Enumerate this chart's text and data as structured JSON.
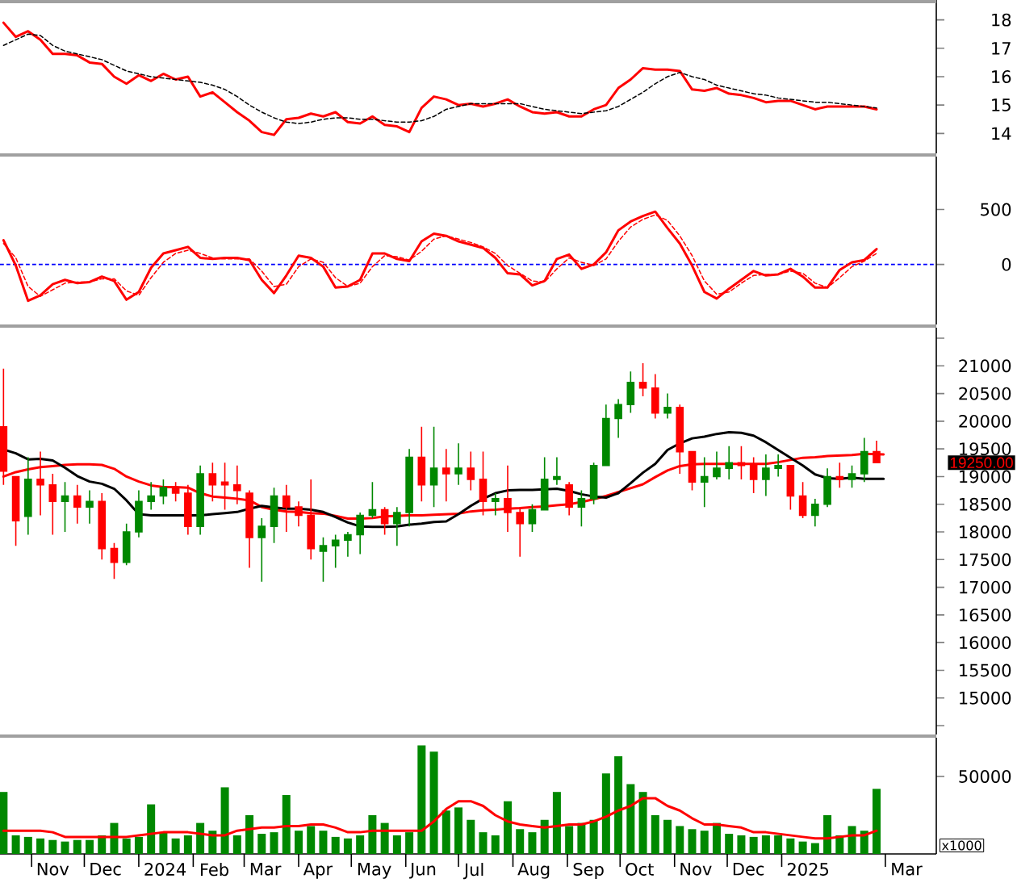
{
  "chart_data": [
    {
      "type": "line",
      "tick_labels": "y",
      "xlim": [
        "2023-10-14",
        "2025-03-30"
      ],
      "ylim": [
        13.3,
        18.7
      ],
      "yticks": [
        14,
        15,
        16,
        17,
        18
      ],
      "x": [
        "2023-10-16",
        "2023-10-23",
        "2023-10-30",
        "2023-11-06",
        "2023-11-13",
        "2023-11-20",
        "2023-11-27",
        "2023-12-04",
        "2023-12-11",
        "2023-12-18",
        "2023-12-25",
        "2024-01-01",
        "2024-01-08",
        "2024-01-15",
        "2024-01-22",
        "2024-01-29",
        "2024-02-05",
        "2024-02-12",
        "2024-02-19",
        "2024-02-26",
        "2024-03-04",
        "2024-03-11",
        "2024-03-18",
        "2024-03-25",
        "2024-04-01",
        "2024-04-08",
        "2024-04-15",
        "2024-04-22",
        "2024-04-29",
        "2024-05-06",
        "2024-05-13",
        "2024-05-20",
        "2024-05-27",
        "2024-06-03",
        "2024-06-10",
        "2024-06-17",
        "2024-06-24",
        "2024-07-01",
        "2024-07-08",
        "2024-07-15",
        "2024-07-22",
        "2024-07-29",
        "2024-08-05",
        "2024-08-12",
        "2024-08-19",
        "2024-08-26",
        "2024-09-02",
        "2024-09-09",
        "2024-09-16",
        "2024-09-23",
        "2024-09-30",
        "2024-10-07",
        "2024-10-14",
        "2024-10-21",
        "2024-10-28",
        "2024-11-04",
        "2024-11-11",
        "2024-11-18",
        "2024-11-25",
        "2024-12-02",
        "2024-12-09",
        "2024-12-16",
        "2024-12-23",
        "2024-12-30",
        "2025-01-06",
        "2025-01-13",
        "2025-01-20",
        "2025-01-27",
        "2025-02-03",
        "2025-02-10",
        "2025-02-17",
        "2025-02-24"
      ],
      "series": [
        {
          "color": "#ff0000",
          "line_style": "solid",
          "values": [
            17.9,
            17.4,
            17.6,
            17.3,
            16.8,
            16.8,
            16.75,
            16.5,
            16.45,
            16.0,
            15.75,
            16.05,
            15.85,
            16.1,
            15.9,
            16.0,
            15.3,
            15.45,
            15.1,
            14.75,
            14.45,
            14.05,
            13.95,
            14.5,
            14.55,
            14.7,
            14.6,
            14.75,
            14.4,
            14.35,
            14.6,
            14.3,
            14.25,
            14.05,
            14.9,
            15.3,
            15.2,
            15.0,
            15.05,
            14.95,
            15.05,
            15.2,
            14.95,
            14.75,
            14.7,
            14.75,
            14.6,
            14.6,
            14.85,
            15.0,
            15.6,
            15.9,
            16.3,
            16.25,
            16.25,
            16.2,
            15.55,
            15.5,
            15.6,
            15.4,
            15.35,
            15.25,
            15.1,
            15.15,
            15.15,
            15.0,
            14.85,
            14.95,
            14.95,
            14.95,
            14.95,
            14.85
          ]
        },
        {
          "color": "#000000",
          "line_style": "dashed",
          "values": [
            17.1,
            17.3,
            17.5,
            17.45,
            17.1,
            16.9,
            16.8,
            16.7,
            16.6,
            16.4,
            16.2,
            16.1,
            16.0,
            15.95,
            15.9,
            15.85,
            15.8,
            15.7,
            15.55,
            15.3,
            15.0,
            14.75,
            14.55,
            14.4,
            14.35,
            14.4,
            14.5,
            14.55,
            14.55,
            14.5,
            14.5,
            14.45,
            14.4,
            14.4,
            14.45,
            14.6,
            14.85,
            14.95,
            15.05,
            15.05,
            15.05,
            15.05,
            15.05,
            14.95,
            14.85,
            14.8,
            14.75,
            14.7,
            14.75,
            14.8,
            14.95,
            15.2,
            15.45,
            15.75,
            16.0,
            16.15,
            16.0,
            15.9,
            15.7,
            15.6,
            15.5,
            15.4,
            15.35,
            15.25,
            15.2,
            15.15,
            15.1,
            15.1,
            15.05,
            15.0,
            14.95,
            14.9
          ]
        }
      ]
    },
    {
      "type": "line",
      "tick_labels": "y",
      "xlim": [
        "2023-10-14",
        "2025-03-30"
      ],
      "ylim": [
        -545,
        980
      ],
      "yticks": [
        0,
        500
      ],
      "ref_lines": [
        {
          "axis": "y",
          "value": 0,
          "color": "#0000ff",
          "line_style": "dashed"
        }
      ],
      "x": [
        "2023-10-16",
        "2023-10-23",
        "2023-10-30",
        "2023-11-06",
        "2023-11-13",
        "2023-11-20",
        "2023-11-27",
        "2023-12-04",
        "2023-12-11",
        "2023-12-18",
        "2023-12-25",
        "2024-01-01",
        "2024-01-08",
        "2024-01-15",
        "2024-01-22",
        "2024-01-29",
        "2024-02-05",
        "2024-02-12",
        "2024-02-19",
        "2024-02-26",
        "2024-03-04",
        "2024-03-11",
        "2024-03-18",
        "2024-03-25",
        "2024-04-01",
        "2024-04-08",
        "2024-04-15",
        "2024-04-22",
        "2024-04-29",
        "2024-05-06",
        "2024-05-13",
        "2024-05-20",
        "2024-05-27",
        "2024-06-03",
        "2024-06-10",
        "2024-06-17",
        "2024-06-24",
        "2024-07-01",
        "2024-07-08",
        "2024-07-15",
        "2024-07-22",
        "2024-07-29",
        "2024-08-05",
        "2024-08-12",
        "2024-08-19",
        "2024-08-26",
        "2024-09-02",
        "2024-09-09",
        "2024-09-16",
        "2024-09-23",
        "2024-09-30",
        "2024-10-07",
        "2024-10-14",
        "2024-10-21",
        "2024-10-28",
        "2024-11-04",
        "2024-11-11",
        "2024-11-18",
        "2024-11-25",
        "2024-12-02",
        "2024-12-09",
        "2024-12-16",
        "2024-12-23",
        "2024-12-30",
        "2025-01-06",
        "2025-01-13",
        "2025-01-20",
        "2025-01-27",
        "2025-02-03",
        "2025-02-10",
        "2025-02-17",
        "2025-02-24"
      ],
      "series": [
        {
          "color": "#ff0000",
          "line_style": "solid",
          "values": [
            220,
            -10,
            -330,
            -280,
            -180,
            -140,
            -170,
            -160,
            -110,
            -150,
            -320,
            -250,
            -30,
            100,
            130,
            160,
            60,
            50,
            60,
            60,
            40,
            -140,
            -260,
            -100,
            80,
            60,
            -20,
            -210,
            -200,
            -140,
            100,
            100,
            50,
            30,
            210,
            280,
            260,
            210,
            180,
            150,
            60,
            -80,
            -90,
            -190,
            -150,
            50,
            90,
            -40,
            0,
            110,
            310,
            390,
            440,
            480,
            330,
            190,
            -10,
            -250,
            -310,
            -220,
            -140,
            -60,
            -100,
            -90,
            -40,
            -110,
            -210,
            -210,
            -50,
            20,
            40,
            140
          ]
        },
        {
          "color": "#ff0000",
          "line_style": "dashed",
          "values": [
            190,
            60,
            -200,
            -290,
            -230,
            -170,
            -160,
            -160,
            -130,
            -130,
            -240,
            -280,
            -120,
            20,
            100,
            130,
            100,
            60,
            50,
            50,
            50,
            -60,
            -200,
            -180,
            -20,
            50,
            20,
            -120,
            -200,
            -170,
            -20,
            80,
            70,
            40,
            120,
            230,
            260,
            230,
            200,
            160,
            100,
            -10,
            -80,
            -150,
            -160,
            -40,
            60,
            20,
            -10,
            50,
            210,
            340,
            410,
            450,
            400,
            260,
            80,
            -150,
            -270,
            -250,
            -170,
            -100,
            -90,
            -90,
            -60,
            -80,
            -170,
            -210,
            -120,
            -20,
            30,
            100
          ]
        }
      ]
    },
    {
      "type": "candlestick",
      "tick_labels": "y",
      "xlim": [
        "2023-10-14",
        "2025-03-30"
      ],
      "ylim": [
        14340,
        21690
      ],
      "yticks": [
        {
          "value": 14500,
          "label": null
        },
        15000,
        15500,
        16000,
        16500,
        17000,
        17500,
        18000,
        18500,
        19000,
        19500,
        20000,
        20500,
        21000,
        {
          "value": 21500,
          "label": null
        }
      ],
      "annotations": [
        "19250.00"
      ],
      "x": [
        "2023-10-16",
        "2023-10-23",
        "2023-10-30",
        "2023-11-06",
        "2023-11-13",
        "2023-11-20",
        "2023-11-27",
        "2023-12-04",
        "2023-12-11",
        "2023-12-18",
        "2023-12-25",
        "2024-01-01",
        "2024-01-08",
        "2024-01-15",
        "2024-01-22",
        "2024-01-29",
        "2024-02-05",
        "2024-02-12",
        "2024-02-19",
        "2024-02-26",
        "2024-03-04",
        "2024-03-11",
        "2024-03-18",
        "2024-03-25",
        "2024-04-01",
        "2024-04-08",
        "2024-04-15",
        "2024-04-22",
        "2024-04-29",
        "2024-05-06",
        "2024-05-13",
        "2024-05-20",
        "2024-05-27",
        "2024-06-03",
        "2024-06-10",
        "2024-06-17",
        "2024-06-24",
        "2024-07-01",
        "2024-07-08",
        "2024-07-15",
        "2024-07-22",
        "2024-07-29",
        "2024-08-05",
        "2024-08-12",
        "2024-08-19",
        "2024-08-26",
        "2024-09-02",
        "2024-09-09",
        "2024-09-16",
        "2024-09-23",
        "2024-09-30",
        "2024-10-07",
        "2024-10-14",
        "2024-10-21",
        "2024-10-28",
        "2024-11-04",
        "2024-11-11",
        "2024-11-18",
        "2024-11-25",
        "2024-12-02",
        "2024-12-09",
        "2024-12-16",
        "2024-12-23",
        "2024-12-30",
        "2025-01-06",
        "2025-01-13",
        "2025-01-20",
        "2025-01-27",
        "2025-02-03",
        "2025-02-10",
        "2025-02-17",
        "2025-02-24"
      ],
      "ohlc": [
        [
          19900,
          20950,
          18850,
          19100
        ],
        [
          19000,
          19000,
          17750,
          18200
        ],
        [
          18280,
          19350,
          17950,
          18950
        ],
        [
          18950,
          19450,
          18300,
          18850
        ],
        [
          18850,
          19050,
          17950,
          18550
        ],
        [
          18550,
          18900,
          18000,
          18650
        ],
        [
          18650,
          18850,
          18150,
          18450
        ],
        [
          18450,
          18750,
          18150,
          18550
        ],
        [
          18550,
          18700,
          17500,
          17700
        ],
        [
          17700,
          17800,
          17150,
          17450
        ],
        [
          17450,
          18150,
          17400,
          18000
        ],
        [
          18000,
          18750,
          17900,
          18550
        ],
        [
          18550,
          18900,
          18400,
          18650
        ],
        [
          18650,
          18950,
          18500,
          18800
        ],
        [
          18800,
          18900,
          18550,
          18700
        ],
        [
          18700,
          18850,
          17950,
          18100
        ],
        [
          18100,
          19200,
          17950,
          19050
        ],
        [
          19050,
          19250,
          18550,
          18850
        ],
        [
          18900,
          19250,
          18400,
          18850
        ],
        [
          18850,
          19200,
          18500,
          18750
        ],
        [
          18700,
          18750,
          17350,
          17900
        ],
        [
          17900,
          18250,
          17100,
          18100
        ],
        [
          18100,
          18800,
          17800,
          18650
        ],
        [
          18650,
          18850,
          18000,
          18450
        ],
        [
          18450,
          18550,
          18100,
          18300
        ],
        [
          18300,
          18950,
          17500,
          17700
        ],
        [
          17650,
          17900,
          17100,
          17750
        ],
        [
          17750,
          17950,
          17350,
          17850
        ],
        [
          17850,
          18000,
          17550,
          17950
        ],
        [
          17950,
          18350,
          17600,
          18300
        ],
        [
          18300,
          18900,
          18250,
          18400
        ],
        [
          18400,
          18450,
          17950,
          18150
        ],
        [
          18150,
          18450,
          17750,
          18350
        ],
        [
          18350,
          19500,
          18100,
          19350
        ],
        [
          19350,
          19900,
          18550,
          18850
        ],
        [
          18850,
          19900,
          18450,
          19150
        ],
        [
          19150,
          19500,
          18550,
          19050
        ],
        [
          19050,
          19600,
          18850,
          19150
        ],
        [
          19150,
          19450,
          18750,
          18950
        ],
        [
          18950,
          19450,
          18300,
          18550
        ],
        [
          18550,
          18700,
          18300,
          18600
        ],
        [
          18600,
          19200,
          18000,
          18350
        ],
        [
          18350,
          18450,
          17550,
          18150
        ],
        [
          18150,
          18500,
          18000,
          18400
        ],
        [
          18400,
          19350,
          18400,
          18950
        ],
        [
          18950,
          19350,
          18850,
          19000
        ],
        [
          18850,
          18900,
          18300,
          18450
        ],
        [
          18450,
          18750,
          18100,
          18600
        ],
        [
          18600,
          19250,
          18500,
          19200
        ],
        [
          19200,
          20300,
          19200,
          20050
        ],
        [
          20050,
          20400,
          19700,
          20300
        ],
        [
          20300,
          20900,
          20150,
          20700
        ],
        [
          20700,
          21050,
          20450,
          20600
        ],
        [
          20600,
          20850,
          20050,
          20150
        ],
        [
          20150,
          20500,
          20050,
          20250
        ],
        [
          20250,
          20300,
          19050,
          19450
        ],
        [
          19450,
          19450,
          18750,
          18900
        ],
        [
          18900,
          19350,
          18450,
          19000
        ],
        [
          19000,
          19450,
          18950,
          19150
        ],
        [
          19150,
          19550,
          18950,
          19250
        ],
        [
          19250,
          19550,
          18950,
          19200
        ],
        [
          19200,
          19350,
          18700,
          18950
        ],
        [
          18950,
          19400,
          18650,
          19150
        ],
        [
          19150,
          19400,
          19000,
          19200
        ],
        [
          19200,
          19200,
          18400,
          18650
        ],
        [
          18650,
          18900,
          18250,
          18300
        ],
        [
          18300,
          18600,
          18100,
          18500
        ],
        [
          18500,
          19150,
          18450,
          19000
        ],
        [
          19000,
          19250,
          18800,
          18950
        ],
        [
          18950,
          19200,
          18800,
          19050
        ],
        [
          19050,
          19700,
          18900,
          19450
        ],
        [
          19450,
          19650,
          19250,
          19250
        ]
      ],
      "colors": [
        "#ff0000",
        "#ff0000",
        "#008800",
        "#ff0000",
        "#ff0000",
        "#008800",
        "#ff0000",
        "#008800",
        "#ff0000",
        "#ff0000",
        "#008800",
        "#008800",
        "#008800",
        "#008800",
        "#ff0000",
        "#ff0000",
        "#008800",
        "#ff0000",
        "#ff0000",
        "#ff0000",
        "#ff0000",
        "#008800",
        "#008800",
        "#ff0000",
        "#ff0000",
        "#ff0000",
        "#008800",
        "#008800",
        "#008800",
        "#008800",
        "#008800",
        "#ff0000",
        "#008800",
        "#008800",
        "#ff0000",
        "#008800",
        "#ff0000",
        "#008800",
        "#ff0000",
        "#ff0000",
        "#008800",
        "#ff0000",
        "#ff0000",
        "#008800",
        "#008800",
        "#008800",
        "#ff0000",
        "#008800",
        "#008800",
        "#008800",
        "#008800",
        "#008800",
        "#ff0000",
        "#ff0000",
        "#008800",
        "#ff0000",
        "#ff0000",
        "#008800",
        "#008800",
        "#008800",
        "#ff0000",
        "#ff0000",
        "#008800",
        "#008800",
        "#ff0000",
        "#ff0000",
        "#008800",
        "#008800",
        "#ff0000",
        "#008800",
        "#008800",
        "#ff0000"
      ],
      "series": [
        {
          "type": "line",
          "color": "#ff0000",
          "x": [
            "2023-10-16",
            "2023-10-23",
            "2023-10-30",
            "2023-11-06",
            "2023-11-13",
            "2023-11-20",
            "2023-11-27",
            "2023-12-04",
            "2023-12-11",
            "2023-12-18",
            "2023-12-25",
            "2024-01-01",
            "2024-01-08",
            "2024-01-15",
            "2024-01-22",
            "2024-01-29",
            "2024-02-05",
            "2024-02-12",
            "2024-02-19",
            "2024-02-26",
            "2024-03-04",
            "2024-03-11",
            "2024-03-18",
            "2024-03-25",
            "2024-04-01",
            "2024-04-08",
            "2024-04-15",
            "2024-04-22",
            "2024-04-29",
            "2024-05-06",
            "2024-05-13",
            "2024-05-20",
            "2024-05-27",
            "2024-06-03",
            "2024-06-10",
            "2024-06-17",
            "2024-06-24",
            "2024-07-01",
            "2024-07-08",
            "2024-07-15",
            "2024-07-22",
            "2024-07-29",
            "2024-08-05",
            "2024-08-12",
            "2024-08-19",
            "2024-08-26",
            "2024-09-02",
            "2024-09-09",
            "2024-09-16",
            "2024-09-23",
            "2024-09-30",
            "2024-10-07",
            "2024-10-14",
            "2024-10-21",
            "2024-10-28",
            "2024-11-04",
            "2024-11-11",
            "2024-11-18",
            "2024-11-25",
            "2024-12-02",
            "2024-12-09",
            "2024-12-16",
            "2024-12-23",
            "2024-12-30",
            "2025-01-06",
            "2025-01-13",
            "2025-01-20",
            "2025-01-27",
            "2025-02-03",
            "2025-02-10",
            "2025-02-17",
            "2025-02-28"
          ],
          "values": [
            19000,
            19080,
            19130,
            19170,
            19190,
            19210,
            19220,
            19220,
            19210,
            19140,
            19000,
            18910,
            18840,
            18810,
            18810,
            18800,
            18700,
            18640,
            18620,
            18600,
            18570,
            18450,
            18400,
            18370,
            18360,
            18340,
            18330,
            18290,
            18240,
            18240,
            18250,
            18280,
            18290,
            18300,
            18300,
            18310,
            18320,
            18330,
            18370,
            18390,
            18400,
            18420,
            18430,
            18450,
            18460,
            18480,
            18500,
            18540,
            18590,
            18650,
            18720,
            18790,
            18860,
            18990,
            19110,
            19190,
            19220,
            19230,
            19230,
            19230,
            19230,
            19230,
            19230,
            19260,
            19300,
            19340,
            19350,
            19370,
            19380,
            19390,
            19410,
            19400
          ]
        },
        {
          "type": "line",
          "color": "#000000",
          "x": [
            "2023-10-16",
            "2023-10-23",
            "2023-10-30",
            "2023-11-06",
            "2023-11-13",
            "2023-11-20",
            "2023-11-27",
            "2023-12-04",
            "2023-12-11",
            "2023-12-18",
            "2023-12-25",
            "2024-01-01",
            "2024-01-08",
            "2024-01-15",
            "2024-01-22",
            "2024-01-29",
            "2024-02-05",
            "2024-02-12",
            "2024-02-19",
            "2024-02-26",
            "2024-03-04",
            "2024-03-11",
            "2024-03-18",
            "2024-03-25",
            "2024-04-01",
            "2024-04-08",
            "2024-04-15",
            "2024-04-22",
            "2024-04-29",
            "2024-05-06",
            "2024-05-13",
            "2024-05-20",
            "2024-05-27",
            "2024-06-03",
            "2024-06-10",
            "2024-06-17",
            "2024-06-24",
            "2024-07-01",
            "2024-07-08",
            "2024-07-15",
            "2024-07-22",
            "2024-07-29",
            "2024-08-05",
            "2024-08-12",
            "2024-08-19",
            "2024-08-26",
            "2024-09-02",
            "2024-09-09",
            "2024-09-16",
            "2024-09-23",
            "2024-09-30",
            "2024-10-07",
            "2024-10-14",
            "2024-10-21",
            "2024-10-28",
            "2024-11-04",
            "2024-11-11",
            "2024-11-18",
            "2024-11-25",
            "2024-12-02",
            "2024-12-09",
            "2024-12-16",
            "2024-12-23",
            "2024-12-30",
            "2025-01-06",
            "2025-01-13",
            "2025-01-20",
            "2025-01-27",
            "2025-02-03",
            "2025-02-10",
            "2025-02-17",
            "2025-02-28"
          ],
          "values": [
            19490,
            19420,
            19310,
            19320,
            19290,
            19160,
            19010,
            18910,
            18870,
            18780,
            18570,
            18320,
            18300,
            18300,
            18300,
            18300,
            18300,
            18320,
            18340,
            18360,
            18420,
            18470,
            18440,
            18420,
            18420,
            18400,
            18360,
            18270,
            18170,
            18100,
            18090,
            18090,
            18100,
            18130,
            18150,
            18180,
            18190,
            18320,
            18470,
            18600,
            18700,
            18750,
            18760,
            18760,
            18770,
            18780,
            18740,
            18680,
            18640,
            18620,
            18700,
            18880,
            19070,
            19230,
            19480,
            19600,
            19690,
            19720,
            19770,
            19800,
            19790,
            19740,
            19620,
            19480,
            19340,
            19200,
            19040,
            18970,
            18960,
            18980,
            18960,
            18960
          ]
        }
      ]
    },
    {
      "type": "bar",
      "xlim": [
        "2023-10-14",
        "2025-03-30"
      ],
      "ylim": [
        0,
        75000
      ],
      "yticks": [
        50000
      ],
      "ylabel": "x1000",
      "xticks": [
        {
          "value": "2023-11-01",
          "label": null
        },
        {
          "value": "2023-11-13",
          "label": "Nov"
        },
        {
          "value": "2023-12-01",
          "label": null
        },
        {
          "value": "2023-12-13",
          "label": "Dec"
        },
        {
          "value": "2024-01-01",
          "label": null
        },
        {
          "value": "2024-01-16",
          "label": "2024"
        },
        {
          "value": "2024-02-01",
          "label": null
        },
        {
          "value": "2024-02-13",
          "label": "Feb"
        },
        {
          "value": "2024-03-01",
          "label": null
        },
        {
          "value": "2024-03-13",
          "label": "Mar"
        },
        {
          "value": "2024-04-01",
          "label": null
        },
        {
          "value": "2024-04-12",
          "label": "Apr"
        },
        {
          "value": "2024-05-01",
          "label": null
        },
        {
          "value": "2024-05-14",
          "label": "May"
        },
        {
          "value": "2024-06-01",
          "label": null
        },
        {
          "value": "2024-06-11",
          "label": "Jun"
        },
        {
          "value": "2024-07-01",
          "label": null
        },
        {
          "value": "2024-07-10",
          "label": "Jul"
        },
        {
          "value": "2024-08-01",
          "label": null
        },
        {
          "value": "2024-08-13",
          "label": "Aug"
        },
        {
          "value": "2024-09-01",
          "label": null
        },
        {
          "value": "2024-09-13",
          "label": "Sep"
        },
        {
          "value": "2024-10-01",
          "label": null
        },
        {
          "value": "2024-10-12",
          "label": "Oct"
        },
        {
          "value": "2024-11-01",
          "label": null
        },
        {
          "value": "2024-11-13",
          "label": "Nov"
        },
        {
          "value": "2024-12-01",
          "label": null
        },
        {
          "value": "2024-12-13",
          "label": "Dec"
        },
        {
          "value": "2025-01-01",
          "label": null
        },
        {
          "value": "2025-01-16",
          "label": "2025"
        },
        {
          "value": "2025-03-01",
          "label": null
        },
        {
          "value": "2025-03-13",
          "label": "Mar"
        }
      ],
      "x": [
        "2023-10-16",
        "2023-10-23",
        "2023-10-30",
        "2023-11-06",
        "2023-11-13",
        "2023-11-20",
        "2023-11-27",
        "2023-12-04",
        "2023-12-11",
        "2023-12-18",
        "2023-12-25",
        "2024-01-01",
        "2024-01-08",
        "2024-01-15",
        "2024-01-22",
        "2024-01-29",
        "2024-02-05",
        "2024-02-12",
        "2024-02-19",
        "2024-02-26",
        "2024-03-04",
        "2024-03-11",
        "2024-03-18",
        "2024-03-25",
        "2024-04-01",
        "2024-04-08",
        "2024-04-15",
        "2024-04-22",
        "2024-04-29",
        "2024-05-06",
        "2024-05-13",
        "2024-05-20",
        "2024-05-27",
        "2024-06-03",
        "2024-06-10",
        "2024-06-17",
        "2024-06-24",
        "2024-07-01",
        "2024-07-08",
        "2024-07-15",
        "2024-07-22",
        "2024-07-29",
        "2024-08-05",
        "2024-08-12",
        "2024-08-19",
        "2024-08-26",
        "2024-09-02",
        "2024-09-09",
        "2024-09-16",
        "2024-09-23",
        "2024-09-30",
        "2024-10-07",
        "2024-10-14",
        "2024-10-21",
        "2024-10-28",
        "2024-11-04",
        "2024-11-11",
        "2024-11-18",
        "2024-11-25",
        "2024-12-02",
        "2024-12-09",
        "2024-12-16",
        "2024-12-23",
        "2024-12-30",
        "2025-01-06",
        "2025-01-13",
        "2025-01-20",
        "2025-01-27",
        "2025-02-03",
        "2025-02-10",
        "2025-02-17",
        "2025-02-24"
      ],
      "series": [
        {
          "type": "bar",
          "color": "#008800",
          "values": [
            40000,
            12000,
            11000,
            10000,
            9000,
            8000,
            9000,
            9000,
            12000,
            20000,
            10000,
            11000,
            32000,
            14000,
            10000,
            12000,
            20000,
            15000,
            43000,
            12000,
            25000,
            13000,
            14000,
            38000,
            15000,
            18000,
            15000,
            11000,
            10000,
            12000,
            25000,
            20000,
            12000,
            14000,
            70000,
            66000,
            28000,
            30000,
            22000,
            14000,
            12000,
            34000,
            16000,
            14000,
            22000,
            40000,
            18000,
            20000,
            22000,
            52000,
            63000,
            45000,
            40000,
            25000,
            22000,
            18000,
            16000,
            15000,
            20000,
            13000,
            12000,
            11000,
            12000,
            12000,
            10000,
            8000,
            7000,
            25000,
            12000,
            18000,
            15000,
            42000
          ]
        },
        {
          "type": "line",
          "color": "#ff0000",
          "values": [
            15000,
            15000,
            15000,
            15000,
            14000,
            11000,
            11000,
            11000,
            11000,
            11000,
            11000,
            12000,
            13000,
            14000,
            14000,
            14000,
            13000,
            12000,
            12000,
            15000,
            16000,
            17000,
            17000,
            18000,
            18000,
            19000,
            19000,
            17000,
            14000,
            14000,
            15000,
            15000,
            15000,
            15000,
            15000,
            21000,
            29000,
            34000,
            34000,
            31000,
            25000,
            21000,
            19000,
            18000,
            17000,
            18000,
            19000,
            19000,
            21000,
            24000,
            28000,
            31000,
            36000,
            36000,
            31000,
            28000,
            23000,
            19000,
            19000,
            18000,
            17000,
            14000,
            14000,
            13000,
            12000,
            11000,
            10000,
            10000,
            11000,
            12000,
            12000,
            15000
          ]
        }
      ]
    }
  ]
}
